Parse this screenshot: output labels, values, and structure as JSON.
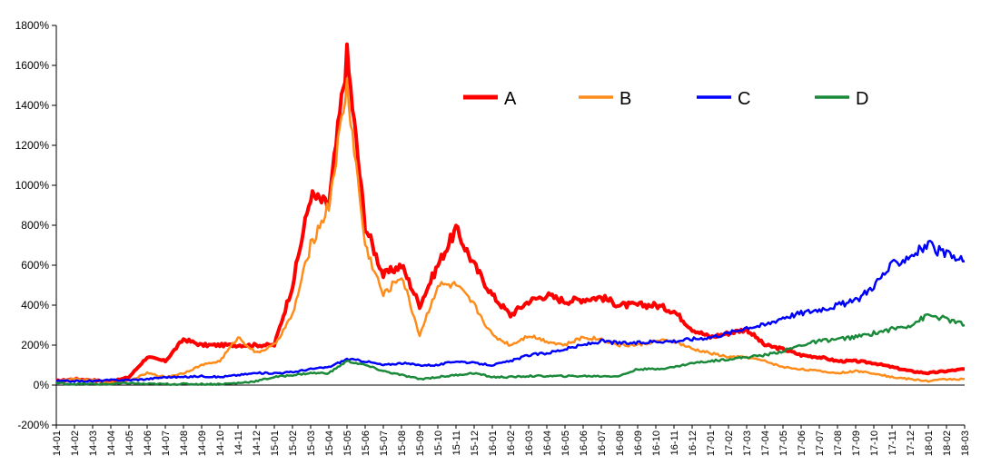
{
  "chart_data": {
    "type": "line",
    "title": "",
    "xlabel": "",
    "ylabel": "",
    "ylim": [
      -200,
      1800
    ],
    "y_ticks": [
      -200,
      0,
      200,
      400,
      600,
      800,
      1000,
      1200,
      1400,
      1600,
      1800
    ],
    "y_tick_labels": [
      "-200%",
      "0%",
      "200%",
      "400%",
      "600%",
      "800%",
      "1000%",
      "1200%",
      "1400%",
      "1600%",
      "1800%"
    ],
    "categories": [
      "14-01",
      "14-02",
      "14-03",
      "14-04",
      "14-05",
      "14-06",
      "14-07",
      "14-08",
      "14-09",
      "14-10",
      "14-11",
      "14-12",
      "15-01",
      "15-02",
      "15-03",
      "15-04",
      "15-05",
      "15-06",
      "15-07",
      "15-08",
      "15-09",
      "15-10",
      "15-11",
      "15-12",
      "16-01",
      "16-02",
      "16-03",
      "16-04",
      "16-05",
      "16-06",
      "16-07",
      "16-08",
      "16-09",
      "16-10",
      "16-11",
      "16-12",
      "17-01",
      "17-02",
      "17-03",
      "17-04",
      "17-05",
      "17-06",
      "17-07",
      "17-08",
      "17-09",
      "17-10",
      "17-11",
      "17-12",
      "18-01",
      "18-02",
      "18-03"
    ],
    "legend_position": "top-right",
    "grid": false,
    "series": [
      {
        "name": "A",
        "color": "#ff0000",
        "width": 4,
        "values": [
          20,
          30,
          25,
          15,
          40,
          140,
          120,
          230,
          200,
          200,
          200,
          200,
          200,
          500,
          950,
          900,
          1650,
          800,
          550,
          600,
          400,
          600,
          780,
          600,
          450,
          350,
          420,
          450,
          420,
          430,
          440,
          400,
          400,
          400,
          370,
          280,
          240,
          260,
          280,
          200,
          180,
          150,
          140,
          120,
          120,
          110,
          90,
          70,
          60,
          70,
          80
        ]
      },
      {
        "name": "B",
        "color": "#ff8c1a",
        "width": 2.5,
        "values": [
          20,
          30,
          25,
          10,
          20,
          60,
          40,
          60,
          100,
          120,
          240,
          160,
          200,
          350,
          700,
          900,
          1500,
          700,
          450,
          550,
          250,
          500,
          500,
          400,
          250,
          200,
          250,
          220,
          200,
          240,
          230,
          200,
          200,
          220,
          220,
          180,
          160,
          140,
          140,
          120,
          90,
          80,
          70,
          60,
          70,
          60,
          40,
          30,
          20,
          30,
          30
        ]
      },
      {
        "name": "C",
        "color": "#0000ff",
        "width": 2.5,
        "values": [
          20,
          20,
          20,
          25,
          25,
          30,
          40,
          40,
          45,
          40,
          50,
          60,
          60,
          65,
          80,
          90,
          130,
          120,
          100,
          110,
          100,
          100,
          120,
          110,
          100,
          120,
          150,
          160,
          180,
          200,
          220,
          210,
          210,
          220,
          220,
          230,
          240,
          260,
          290,
          300,
          340,
          360,
          380,
          400,
          420,
          500,
          600,
          650,
          700,
          650,
          620
        ]
      },
      {
        "name": "D",
        "color": "#1a8a3a",
        "width": 2.5,
        "values": [
          10,
          5,
          5,
          5,
          10,
          5,
          5,
          5,
          5,
          5,
          10,
          20,
          40,
          50,
          60,
          60,
          120,
          100,
          70,
          50,
          30,
          40,
          50,
          60,
          40,
          40,
          45,
          45,
          45,
          45,
          45,
          45,
          80,
          80,
          90,
          110,
          120,
          130,
          140,
          150,
          170,
          200,
          220,
          230,
          240,
          260,
          280,
          300,
          350,
          330,
          300
        ]
      }
    ]
  }
}
